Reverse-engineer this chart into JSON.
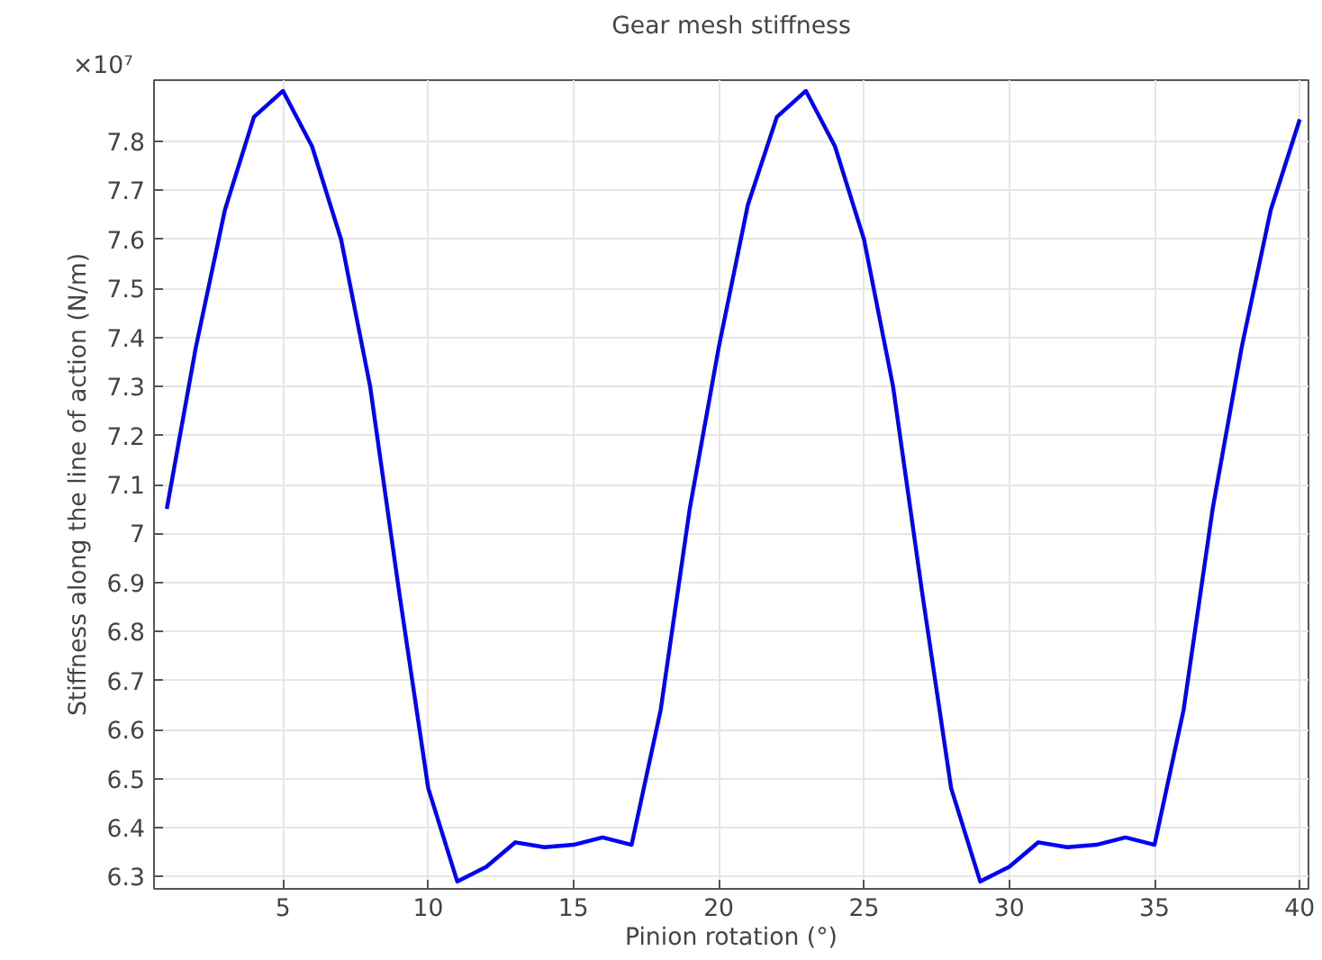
{
  "chart_data": {
    "type": "line",
    "title": "Gear mesh stiffness",
    "xlabel": "Pinion rotation (°)",
    "ylabel": "Stiffness along the line of action (N/m)",
    "annotations": [
      "×10⁷"
    ],
    "x": [
      1,
      2,
      3,
      4,
      5,
      6,
      7,
      8,
      9,
      10,
      11,
      12,
      13,
      14,
      15,
      16,
      17,
      18,
      19,
      20,
      21,
      22,
      23,
      24,
      25,
      26,
      27,
      28,
      29,
      30,
      31,
      32,
      33,
      34,
      35,
      36,
      37,
      38,
      39,
      40
    ],
    "series": [
      {
        "color": "#0000ff",
        "values": [
          7.05,
          7.38,
          7.66,
          7.85,
          7.903,
          7.79,
          7.6,
          7.3,
          6.88,
          6.48,
          6.29,
          6.32,
          6.37,
          6.36,
          6.365,
          6.38,
          6.365,
          6.64,
          7.05,
          7.38,
          7.67,
          7.85,
          7.903,
          7.79,
          7.6,
          7.3,
          6.88,
          6.48,
          6.29,
          6.32,
          6.37,
          6.36,
          6.365,
          6.38,
          6.365,
          6.64,
          7.05,
          7.38,
          7.66,
          7.845
        ]
      }
    ],
    "xlim": [
      0.56,
      40.3
    ],
    "ylim": [
      6.275,
      7.925
    ],
    "xticks": [
      5,
      10,
      15,
      20,
      25,
      30,
      35,
      40
    ],
    "yticks": [
      6.3,
      6.4,
      6.5,
      6.6,
      6.7,
      6.8,
      6.9,
      {
        "value": 7,
        "label": "7"
      },
      7.1,
      7.2,
      7.3,
      7.4,
      7.5,
      7.6,
      7.7,
      7.8
    ],
    "grid": true,
    "marker": "none",
    "line_style": "solid"
  }
}
